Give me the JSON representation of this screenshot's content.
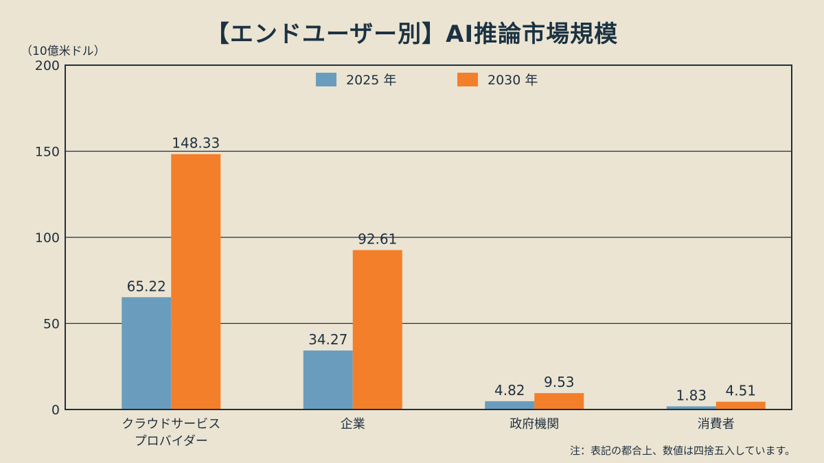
{
  "chart_data": {
    "type": "bar",
    "title": "【エンドユーザー別】AI推論市場規模",
    "ylabel": "（10億米ドル）",
    "xlabel": "",
    "ylim": [
      0,
      200
    ],
    "yticks": [
      0,
      50,
      100,
      150,
      200
    ],
    "grid": true,
    "legend_position": "top-center",
    "categories": [
      [
        "クラウドサービス",
        "プロバイダー"
      ],
      [
        "企業"
      ],
      [
        "政府機関"
      ],
      [
        "消費者"
      ]
    ],
    "series": [
      {
        "name": "2025 年",
        "color": "#6a9dbd",
        "values": [
          65.22,
          34.27,
          4.82,
          1.83
        ]
      },
      {
        "name": "2030 年",
        "color": "#f47f2b",
        "values": [
          148.33,
          92.61,
          9.53,
          4.51
        ]
      }
    ],
    "note": "注：表記の都合上、数値は四捨五入しています。"
  }
}
